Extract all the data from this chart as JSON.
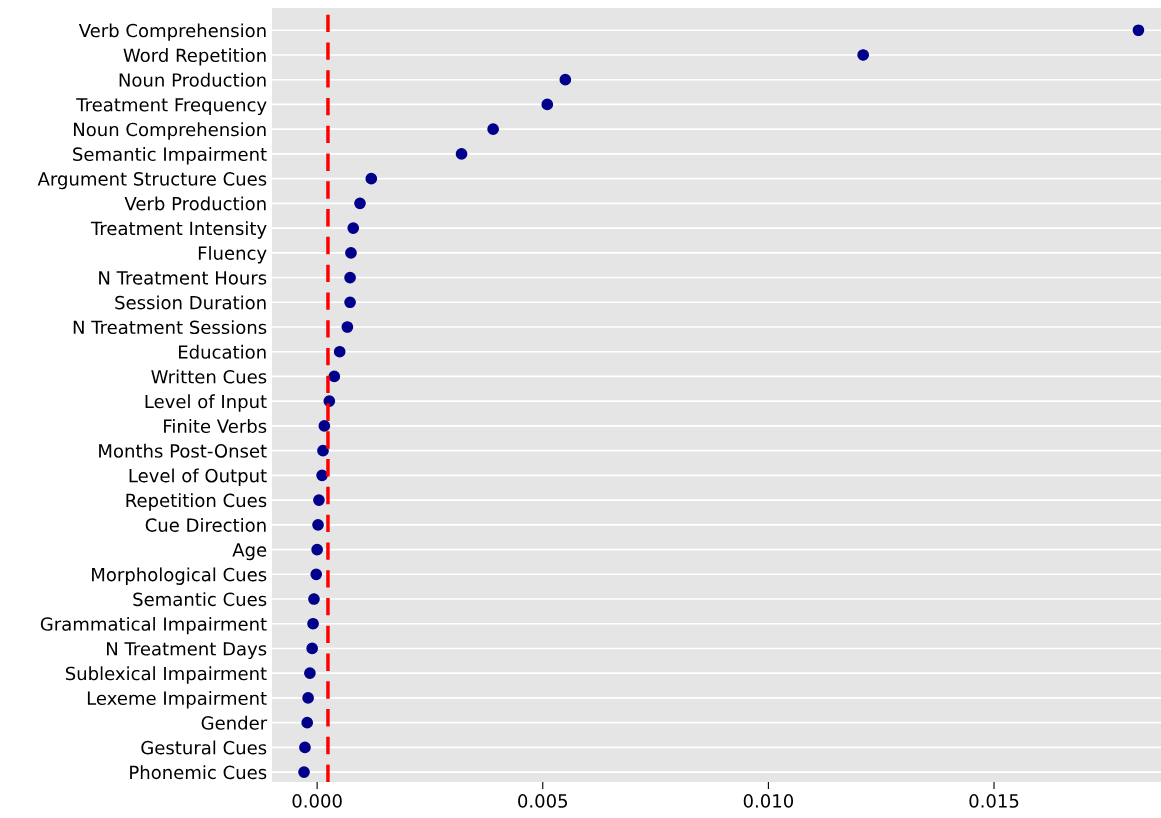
{
  "chart_data": {
    "type": "scatter",
    "orientation": "horizontal",
    "categories": [
      "Verb Comprehension",
      "Word Repetition",
      "Noun Production",
      "Treatment Frequency",
      "Noun Comprehension",
      "Semantic Impairment",
      "Argument Structure Cues",
      "Verb Production",
      "Treatment Intensity",
      "Fluency",
      "N Treatment Hours",
      "Session Duration",
      "N Treatment Sessions",
      "Education",
      "Written Cues",
      "Level of Input",
      "Finite Verbs",
      "Months Post-Onset",
      "Level of Output",
      "Repetition Cues",
      "Cue Direction",
      "Age",
      "Morphological Cues",
      "Semantic Cues",
      "Grammatical Impairment",
      "N Treatment Days",
      "Sublexical Impairment",
      "Lexeme Impairment",
      "Gender",
      "Gestural Cues",
      "Phonemic Cues"
    ],
    "series": [
      {
        "color": "#00008b",
        "values": [
          0.0182,
          0.0121,
          0.0055,
          0.0051,
          0.0039,
          0.0032,
          0.0012,
          0.00095,
          0.0008,
          0.00075,
          0.00073,
          0.00073,
          0.00067,
          0.0005,
          0.00038,
          0.00027,
          0.00016,
          0.00013,
          0.00011,
          4e-05,
          2e-05,
          0.0,
          -2e-05,
          -7e-05,
          -9e-05,
          -0.00011,
          -0.00016,
          -0.0002,
          -0.00022,
          -0.00027,
          -0.00029
        ]
      }
    ],
    "xlim": [
      -0.001,
      0.0187
    ],
    "xticks": [
      {
        "value": 0,
        "label": "0.000"
      },
      {
        "value": 0.005,
        "label": "0.005"
      },
      {
        "value": 0.01,
        "label": "0.010"
      },
      {
        "value": 0.015,
        "label": "0.015"
      }
    ],
    "ref_lines": [
      {
        "axis": "x",
        "value": 0.00024,
        "color": "#ff0000",
        "line_style": "dashed"
      }
    ],
    "grid": "y",
    "marker": "circle"
  }
}
